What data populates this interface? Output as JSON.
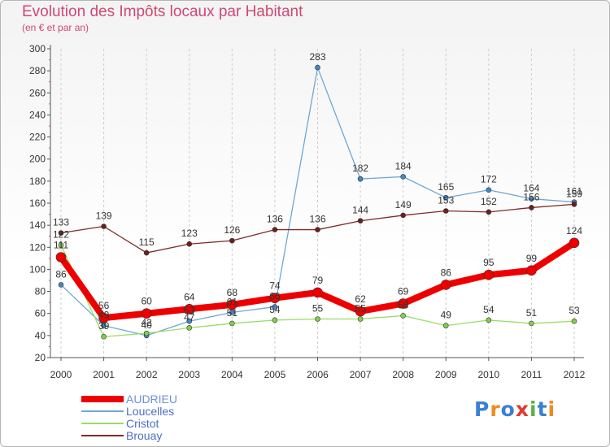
{
  "chart_data": {
    "type": "line",
    "title": "Evolution des Impôts locaux par Habitant",
    "subtitle": "(en € et par an)",
    "xlabel": "",
    "ylabel": "",
    "x": [
      "2000",
      "2001",
      "2002",
      "2003",
      "2004",
      "2005",
      "2006",
      "2007",
      "2008",
      "2009",
      "2010",
      "2011",
      "2012"
    ],
    "ylim": [
      20,
      300
    ],
    "yticks": [
      20,
      40,
      60,
      80,
      100,
      120,
      140,
      160,
      180,
      200,
      220,
      240,
      260,
      280,
      300
    ],
    "grid": "vertical dashed",
    "legend_position": "bottom-left",
    "series": [
      {
        "name": "AUDRIEU",
        "color": "#ee0000",
        "values": [
          111,
          56,
          60,
          64,
          68,
          74,
          79,
          62,
          69,
          86,
          95,
          99,
          124
        ]
      },
      {
        "name": "Loucelles",
        "color": "#6fa7d4",
        "values": [
          86,
          49,
          40,
          53,
          61,
          66,
          283,
          182,
          184,
          165,
          172,
          164,
          161
        ]
      },
      {
        "name": "Cristot",
        "color": "#99dd66",
        "values": [
          122,
          39,
          42,
          47,
          51,
          54,
          55,
          55,
          58,
          49,
          54,
          51,
          53
        ]
      },
      {
        "name": "Brouay",
        "color": "#7f2a2a",
        "values": [
          133,
          139,
          115,
          123,
          126,
          136,
          136,
          144,
          149,
          153,
          152,
          156,
          159
        ]
      }
    ],
    "labels": {
      "AUDRIEU": [
        "111",
        "56",
        "60",
        "64",
        "68",
        "74",
        "79",
        "62",
        "69",
        "86",
        "95",
        "99",
        "124"
      ],
      "Loucelles": [
        "86",
        "49",
        "40",
        "53",
        "61",
        "66",
        "283",
        "182",
        "184",
        "165",
        "172",
        "164",
        "161"
      ],
      "Cristot": [
        "122",
        "39",
        "42",
        "47",
        "51",
        "54",
        "55",
        "55",
        "58",
        "49",
        "54",
        "51",
        "53"
      ],
      "Brouay": [
        "133",
        "139",
        "115",
        "123",
        "126",
        "136",
        "136",
        "144",
        "149",
        "153",
        "152",
        "156",
        "159"
      ]
    }
  },
  "logo": {
    "text": "Proxiti",
    "letters": [
      "P",
      "r",
      "o",
      "x",
      "i",
      "t",
      "i"
    ],
    "colors": [
      "#3a7fd5",
      "#f08a1c",
      "#3a7fd5",
      "#e03a2e",
      "#5ab246",
      "#3a7fd5",
      "#f08a1c"
    ]
  }
}
